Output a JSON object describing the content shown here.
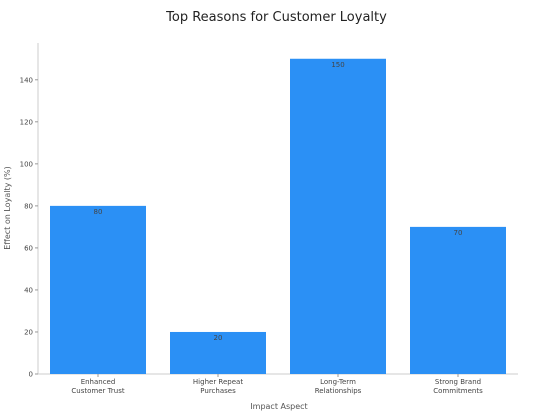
{
  "chart_data": {
    "type": "bar",
    "title": "Top Reasons for Customer Loyalty",
    "xlabel": "Impact Aspect",
    "ylabel": "Effect on Loyalty (%)",
    "categories": [
      [
        "Enhanced",
        "Customer Trust"
      ],
      [
        "Higher Repeat",
        "Purchases"
      ],
      [
        "Long-Term",
        "Relationships"
      ],
      [
        "Strong Brand",
        "Commitments"
      ]
    ],
    "values": [
      80,
      20,
      150,
      70
    ],
    "data_labels": [
      "80",
      "20",
      "150",
      "70"
    ],
    "ylim": [
      0,
      157.5
    ],
    "yticks": [
      0,
      20,
      40,
      60,
      80,
      100,
      120,
      140
    ],
    "grid": false,
    "bar_color": "#2b90f5"
  }
}
